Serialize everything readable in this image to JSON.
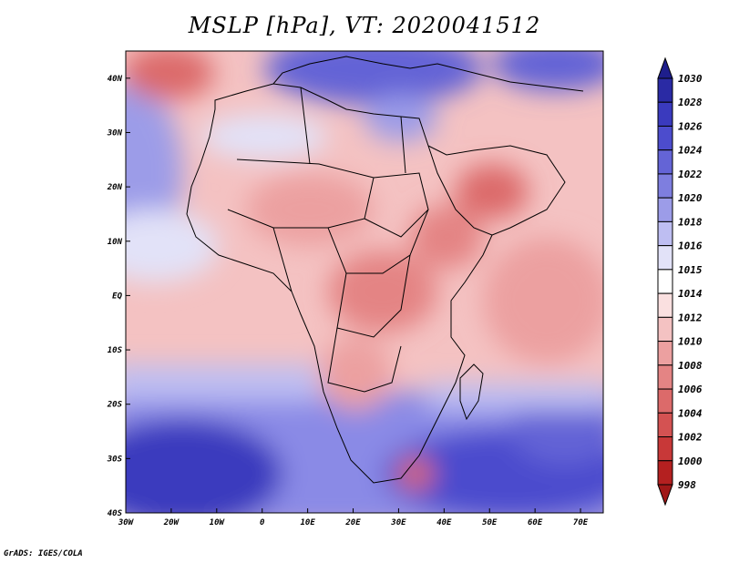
{
  "title": "MSLP [hPa], VT: 2020041512",
  "credit": "GrADS: IGES/COLA",
  "map": {
    "lon_range": [
      -30,
      75
    ],
    "lat_range": [
      -40,
      45
    ],
    "lat_ticks": [
      {
        "value": 40,
        "label": "40N"
      },
      {
        "value": 30,
        "label": "30N"
      },
      {
        "value": 20,
        "label": "20N"
      },
      {
        "value": 10,
        "label": "10N"
      },
      {
        "value": 0,
        "label": "EQ"
      },
      {
        "value": -10,
        "label": "10S"
      },
      {
        "value": -20,
        "label": "20S"
      },
      {
        "value": -30,
        "label": "30S"
      },
      {
        "value": -40,
        "label": "40S"
      }
    ],
    "lon_ticks": [
      {
        "value": -30,
        "label": "30W"
      },
      {
        "value": -20,
        "label": "20W"
      },
      {
        "value": -10,
        "label": "10W"
      },
      {
        "value": 0,
        "label": "0"
      },
      {
        "value": 10,
        "label": "10E"
      },
      {
        "value": 20,
        "label": "20E"
      },
      {
        "value": 30,
        "label": "30E"
      },
      {
        "value": 40,
        "label": "40E"
      },
      {
        "value": 50,
        "label": "50E"
      },
      {
        "value": 60,
        "label": "60E"
      },
      {
        "value": 70,
        "label": "70E"
      }
    ]
  },
  "colorbar": {
    "levels": [
      "1030",
      "1028",
      "1026",
      "1024",
      "1022",
      "1020",
      "1018",
      "1016",
      "1015",
      "1014",
      "1012",
      "1010",
      "1008",
      "1006",
      "1004",
      "1002",
      "1000",
      "998"
    ],
    "colors": [
      "#1e1e8c",
      "#2a2aa4",
      "#3a3abe",
      "#4c4ccd",
      "#6464d6",
      "#7e7edf",
      "#9c9ce8",
      "#bebef2",
      "#e2e2f8",
      "#ffffff",
      "#fae0e0",
      "#f4c2c2",
      "#eca0a0",
      "#e48484",
      "#dc6a6a",
      "#d45252",
      "#c83838",
      "#b42020",
      "#a01818"
    ]
  }
}
